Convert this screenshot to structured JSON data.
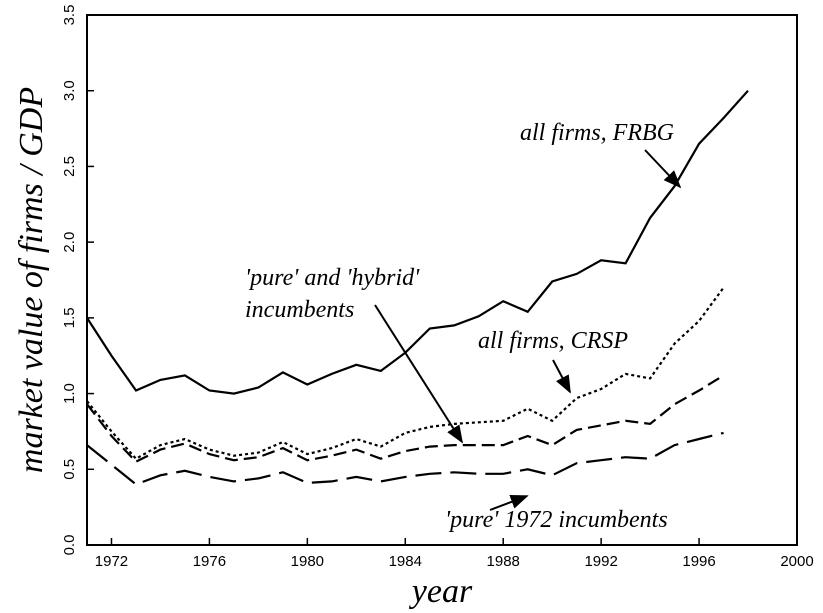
{
  "chart_data": {
    "type": "line",
    "xlabel": "year",
    "ylabel": "market value of firms / GDP",
    "x": [
      1971,
      1972,
      1973,
      1974,
      1975,
      1976,
      1977,
      1978,
      1979,
      1980,
      1981,
      1982,
      1983,
      1984,
      1985,
      1986,
      1987,
      1988,
      1989,
      1990,
      1991,
      1992,
      1993,
      1994,
      1995,
      1996,
      1997,
      1998
    ],
    "xlim": [
      1971,
      2000
    ],
    "xticks": [
      1972,
      1976,
      1980,
      1984,
      1988,
      1992,
      1996,
      2000
    ],
    "ylim": [
      0,
      3.5
    ],
    "yticks": [
      {
        "value": 0,
        "label": "0.0"
      },
      0.5,
      {
        "value": 1,
        "label": "1.0"
      },
      1.5,
      {
        "value": 2,
        "label": "2.0"
      },
      2.5,
      {
        "value": 3,
        "label": "3.0"
      },
      3.5
    ],
    "annotations": [
      "all firms, FRBG",
      "'pure' and 'hybrid'",
      "incumbents",
      "all firms, CRSP",
      "'pure' 1972 incumbents"
    ],
    "series": [
      {
        "color": "#000000",
        "line_style": "solid",
        "values": [
          1.5,
          1.25,
          1.02,
          1.09,
          1.12,
          1.02,
          1.0,
          1.04,
          1.14,
          1.06,
          1.13,
          1.19,
          1.15,
          1.27,
          1.43,
          1.45,
          1.51,
          1.61,
          1.54,
          1.74,
          1.79,
          1.88,
          1.86,
          2.16,
          2.37,
          2.65,
          2.82,
          3.0
        ]
      },
      {
        "color": "#000000",
        "line_style": "dotted",
        "values": [
          0.95,
          0.75,
          0.57,
          0.66,
          0.7,
          0.63,
          0.59,
          0.61,
          0.68,
          0.6,
          0.64,
          0.7,
          0.65,
          0.74,
          0.78,
          0.8,
          0.81,
          0.82,
          0.9,
          0.82,
          0.97,
          1.03,
          1.13,
          1.1,
          1.33,
          1.48,
          1.7,
          null
        ]
      },
      {
        "color": "#000000",
        "line_style": "dashed",
        "values": [
          0.93,
          0.72,
          0.55,
          0.63,
          0.67,
          0.6,
          0.56,
          0.58,
          0.64,
          0.56,
          0.59,
          0.63,
          0.57,
          0.62,
          0.65,
          0.66,
          0.66,
          0.66,
          0.72,
          0.66,
          0.76,
          0.79,
          0.82,
          0.8,
          0.93,
          1.02,
          1.12,
          null
        ]
      },
      {
        "color": "#000000",
        "line_style": "long-dashed",
        "values": [
          0.66,
          0.53,
          0.4,
          0.46,
          0.49,
          0.45,
          0.42,
          0.44,
          0.48,
          0.41,
          0.42,
          0.45,
          0.42,
          0.45,
          0.47,
          0.48,
          0.47,
          0.47,
          0.5,
          0.46,
          0.54,
          0.56,
          0.58,
          0.57,
          0.66,
          0.7,
          0.74,
          null
        ]
      }
    ]
  }
}
